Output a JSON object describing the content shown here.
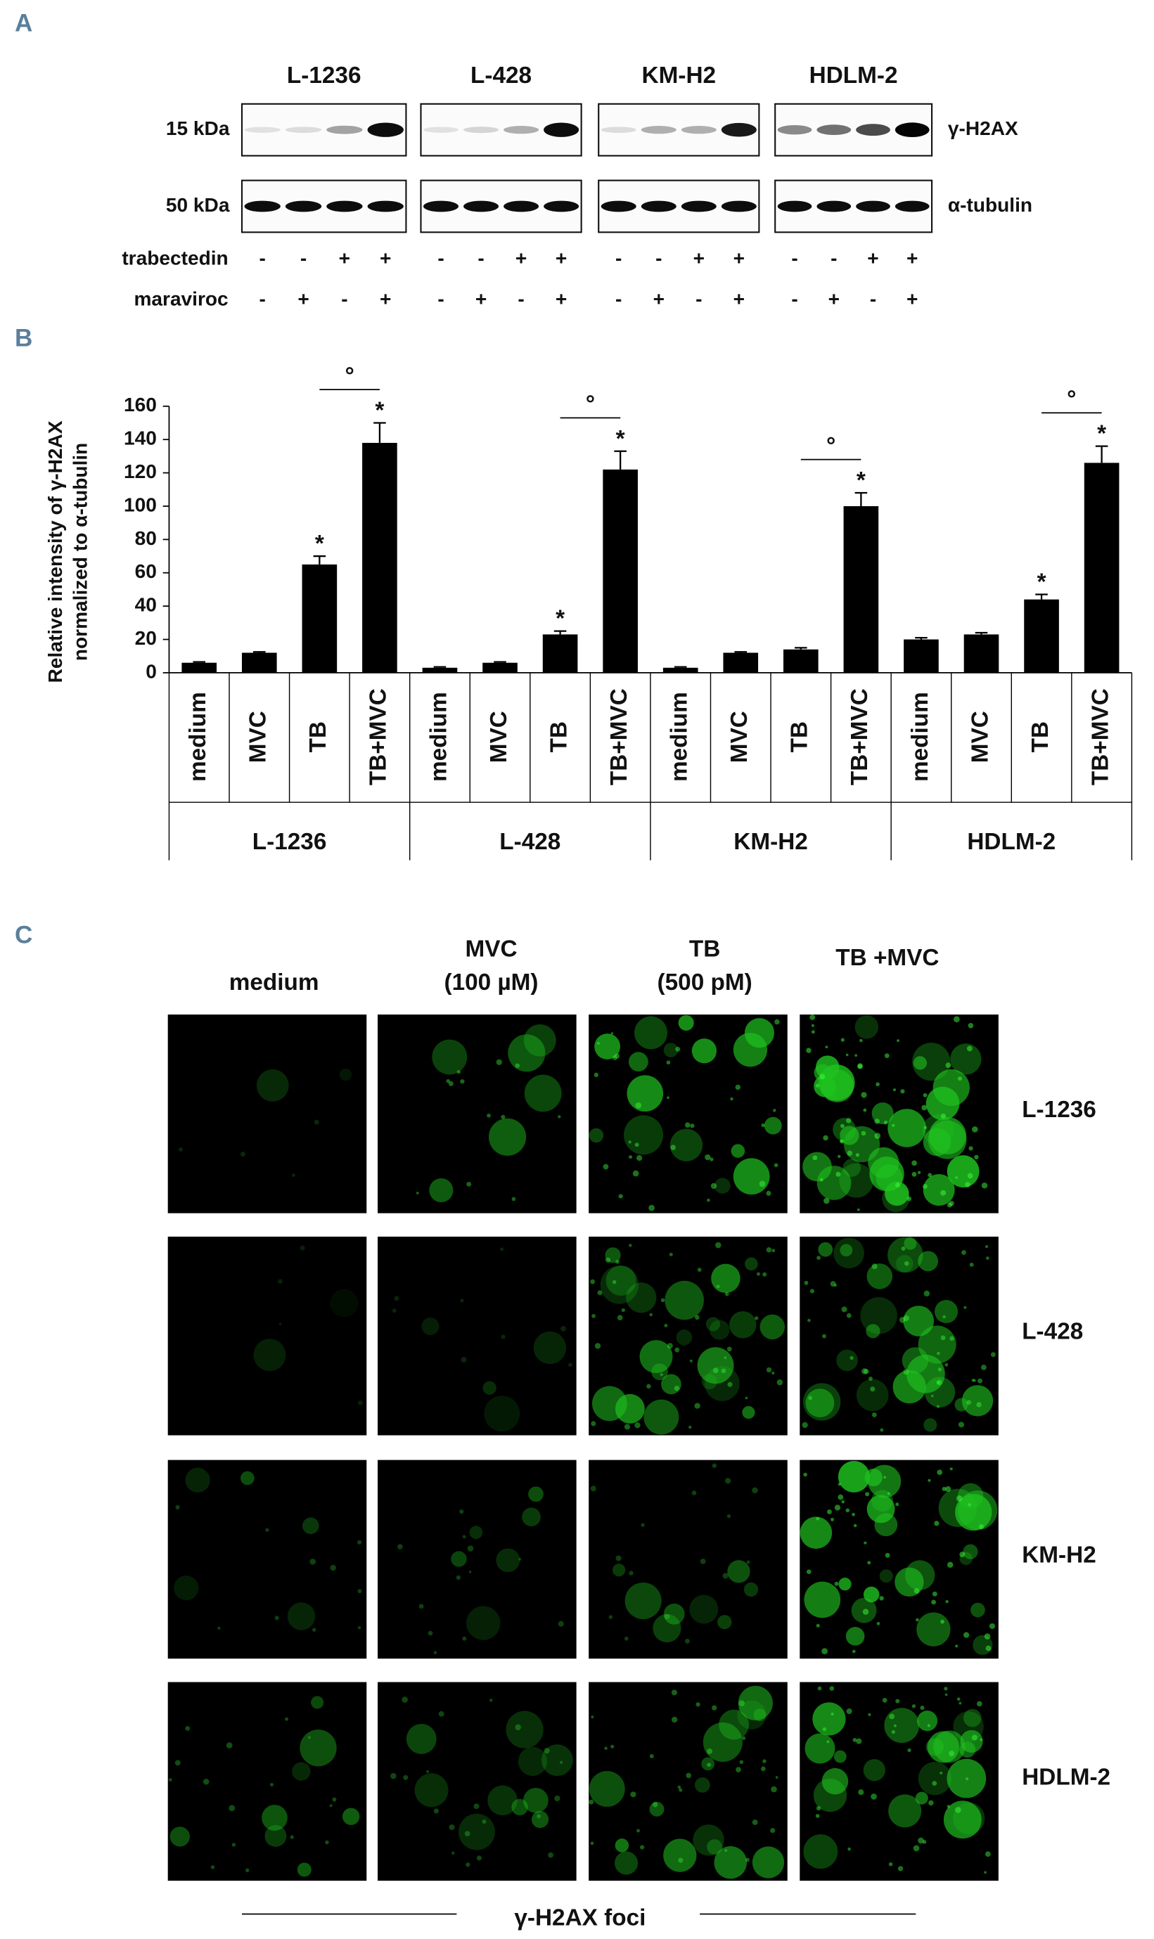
{
  "panel_labels": [
    "A",
    "B",
    "C"
  ],
  "western_blot": {
    "cell_lines": [
      "L-1236",
      "L-428",
      "KM-H2",
      "HDLM-2"
    ],
    "rows": [
      {
        "size": "15 kDa",
        "protein": "γ-H2AX"
      },
      {
        "size": "50 kDa",
        "protein": "α-tubulin"
      }
    ],
    "treatments": [
      {
        "name": "trabectedin",
        "signs": [
          "-",
          "-",
          "+",
          "+",
          "-",
          "-",
          "+",
          "+",
          "-",
          "-",
          "+",
          "+",
          "-",
          "-",
          "+",
          "+"
        ]
      },
      {
        "name": "maraviroc",
        "signs": [
          "-",
          "+",
          "-",
          "+",
          "-",
          "+",
          "-",
          "+",
          "-",
          "+",
          "-",
          "+",
          "-",
          "+",
          "-",
          "+"
        ]
      }
    ]
  },
  "chart_data": {
    "type": "bar",
    "y_label": [
      "Relative intensity of γ-H2AX",
      "normalized to α-tubulin"
    ],
    "groups": [
      "L-1236",
      "L-428",
      "KM-H2",
      "HDLM-2"
    ],
    "categories": [
      "medium",
      "MVC",
      "TB",
      "TB+MVC",
      "medium",
      "MVC",
      "TB",
      "TB+MVC",
      "medium",
      "MVC",
      "TB",
      "TB+MVC",
      "medium",
      "MVC",
      "TB",
      "TB+MVC"
    ],
    "values": [
      6,
      12,
      65,
      138,
      3,
      6,
      23,
      122,
      3,
      12,
      14,
      100,
      20,
      23,
      44,
      126
    ],
    "errors": [
      0.5,
      0.5,
      5,
      12,
      0.5,
      0.5,
      2,
      11,
      0.5,
      0.5,
      1,
      8,
      1,
      1,
      3,
      10
    ],
    "color": "#000000",
    "ylim": [
      0,
      160
    ],
    "yticks": [
      0,
      20,
      40,
      60,
      80,
      100,
      120,
      140,
      160
    ],
    "stars": [
      {
        "group": "L-1236",
        "category": "TB",
        "text": "*"
      },
      {
        "group": "L-1236",
        "category": "TB+MVC",
        "text": "*"
      },
      {
        "group": "L-428",
        "category": "TB",
        "text": "*"
      },
      {
        "group": "L-428",
        "category": "TB+MVC",
        "text": "*"
      },
      {
        "group": "KM-H2",
        "category": "TB+MVC",
        "text": "*"
      },
      {
        "group": "HDLM-2",
        "category": "TB",
        "text": "*"
      },
      {
        "group": "HDLM-2",
        "category": "TB+MVC",
        "text": "*"
      }
    ],
    "comparisons": [
      {
        "group": "L-1236",
        "from": "TB",
        "to": "TB+MVC",
        "text": "°"
      },
      {
        "group": "L-428",
        "from": "TB",
        "to": "TB+MVC",
        "text": "°"
      },
      {
        "group": "KM-H2",
        "from": "TB",
        "to": "TB+MVC",
        "text": "°"
      },
      {
        "group": "HDLM-2",
        "from": "TB",
        "to": "TB+MVC",
        "text": "°"
      }
    ]
  },
  "microscopy": {
    "columns": [
      [
        "medium"
      ],
      [
        "MVC",
        "(100 µM)"
      ],
      [
        "TB",
        "(500 pM)"
      ],
      [
        "TB +MVC"
      ]
    ],
    "rows": [
      "L-1236",
      "L-428",
      "KM-H2",
      "HDLM-2"
    ],
    "caption": "γ-H2AX foci"
  }
}
